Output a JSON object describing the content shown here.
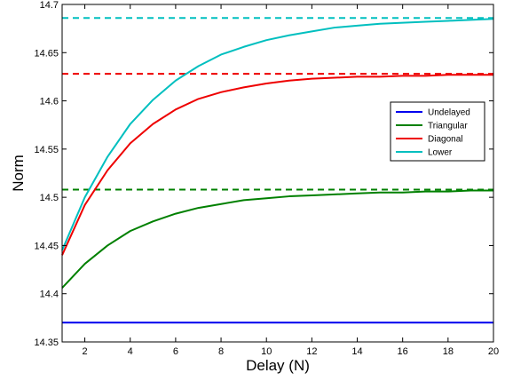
{
  "chart_data": {
    "type": "line",
    "title": "",
    "xlabel": "Delay (N)",
    "ylabel": "Norm",
    "xlim": [
      1,
      20
    ],
    "ylim": [
      14.35,
      14.7
    ],
    "xticks": [
      2,
      4,
      6,
      8,
      10,
      12,
      14,
      16,
      18,
      20
    ],
    "yticks": [
      14.35,
      14.4,
      14.45,
      14.5,
      14.55,
      14.6,
      14.65,
      14.7
    ],
    "ytick_labels": [
      "14.35",
      "14.4",
      "14.45",
      "14.5",
      "14.55",
      "14.6",
      "14.65",
      "14.7"
    ],
    "grid": false,
    "legend_position": "right",
    "x": [
      1,
      2,
      3,
      4,
      5,
      6,
      7,
      8,
      9,
      10,
      11,
      12,
      13,
      14,
      15,
      16,
      17,
      18,
      19,
      20
    ],
    "series": [
      {
        "name": "Undelayed",
        "color": "#0000ee",
        "style": "solid",
        "values": [
          14.37,
          14.37,
          14.37,
          14.37,
          14.37,
          14.37,
          14.37,
          14.37,
          14.37,
          14.37,
          14.37,
          14.37,
          14.37,
          14.37,
          14.37,
          14.37,
          14.37,
          14.37,
          14.37,
          14.37
        ]
      },
      {
        "name": "Triangular",
        "color": "#008000",
        "style": "solid",
        "values": [
          14.406,
          14.431,
          14.45,
          14.465,
          14.475,
          14.483,
          14.489,
          14.493,
          14.497,
          14.499,
          14.501,
          14.502,
          14.503,
          14.504,
          14.505,
          14.505,
          14.506,
          14.506,
          14.507,
          14.507
        ]
      },
      {
        "name": "Diagonal",
        "color": "#ee0000",
        "style": "solid",
        "values": [
          14.44,
          14.492,
          14.528,
          14.556,
          14.576,
          14.591,
          14.602,
          14.609,
          14.614,
          14.618,
          14.621,
          14.623,
          14.624,
          14.625,
          14.625,
          14.626,
          14.626,
          14.627,
          14.627,
          14.627
        ]
      },
      {
        "name": "Lower",
        "color": "#00bfbf",
        "style": "solid",
        "values": [
          14.445,
          14.5,
          14.542,
          14.576,
          14.601,
          14.621,
          14.636,
          14.648,
          14.656,
          14.663,
          14.668,
          14.672,
          14.676,
          14.678,
          14.68,
          14.681,
          14.682,
          14.683,
          14.684,
          14.685
        ]
      }
    ],
    "reference_lines": [
      {
        "color": "#ee0000",
        "style": "dashed",
        "y": 14.628
      },
      {
        "color": "#00bfbf",
        "style": "dashed",
        "y": 14.686
      },
      {
        "color": "#008000",
        "style": "dashed",
        "y": 14.508
      }
    ]
  }
}
